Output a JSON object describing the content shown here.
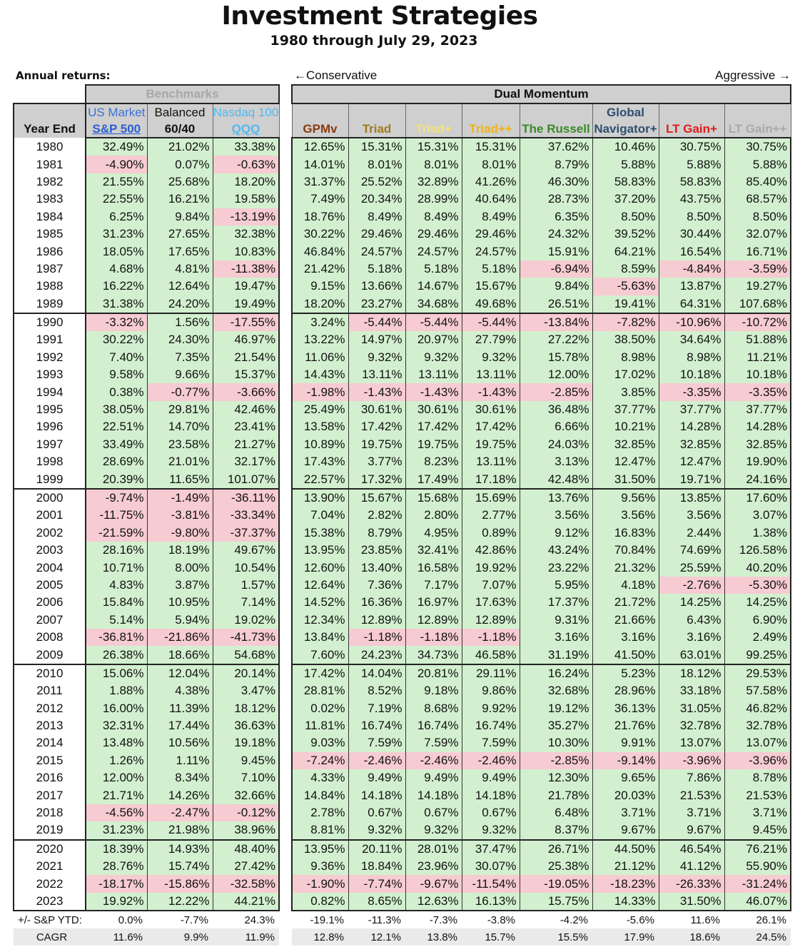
{
  "title": "Investment Strategies",
  "subtitle": "1980 through July 29, 2023",
  "annual_label": "Annual returns:",
  "conservative_label": "←Conservative",
  "aggressive_label": "Aggressive →",
  "groups": {
    "benchmarks": "Benchmarks",
    "dual_momentum": "Dual Momentum"
  },
  "year_header": "Year End",
  "columns": [
    {
      "top": "US Market",
      "bottom": "S&P 500",
      "top_color": "#3a6fd6",
      "bottom_color": "#2a5fcf"
    },
    {
      "top": "Balanced",
      "bottom": "60/40",
      "top_color": "#111111",
      "bottom_color": "#111111"
    },
    {
      "top": "Nasdaq 100",
      "bottom": "QQQ",
      "top_color": "#52b8ef",
      "bottom_color": "#52b8ef"
    },
    {
      "top": "",
      "bottom": "GPMv",
      "top_color": "#111111",
      "bottom_color": "#8a3a10"
    },
    {
      "top": "",
      "bottom": "Triad",
      "top_color": "#111111",
      "bottom_color": "#a07a1e"
    },
    {
      "top": "",
      "bottom": "Triad+",
      "top_color": "#111111",
      "bottom_color": "#f3e27a"
    },
    {
      "top": "",
      "bottom": "Triad++",
      "top_color": "#111111",
      "bottom_color": "#f2b218"
    },
    {
      "top": "",
      "bottom": "The Russell",
      "top_color": "#111111",
      "bottom_color": "#3a8a2a"
    },
    {
      "top": "Global",
      "bottom": "Navigator+",
      "top_color": "#2f4f6f",
      "bottom_color": "#2f4f6f"
    },
    {
      "top": "",
      "bottom": "LT Gain+",
      "top_color": "#111111",
      "bottom_color": "#e01c1c"
    },
    {
      "top": "",
      "bottom": "LT Gain++",
      "top_color": "#111111",
      "bottom_color": "#a9a9a9"
    }
  ],
  "rows": [
    {
      "year": "1980",
      "values": [
        "32.49%",
        "21.02%",
        "33.38%",
        "12.65%",
        "15.31%",
        "15.31%",
        "15.31%",
        "37.62%",
        "10.46%",
        "30.75%",
        "30.75%"
      ]
    },
    {
      "year": "1981",
      "values": [
        "-4.90%",
        "0.07%",
        "-0.63%",
        "14.01%",
        "8.01%",
        "8.01%",
        "8.01%",
        "8.79%",
        "5.88%",
        "5.88%",
        "5.88%"
      ]
    },
    {
      "year": "1982",
      "values": [
        "21.55%",
        "25.68%",
        "18.20%",
        "31.37%",
        "25.52%",
        "32.89%",
        "41.26%",
        "46.30%",
        "58.83%",
        "58.83%",
        "85.40%"
      ]
    },
    {
      "year": "1983",
      "values": [
        "22.55%",
        "16.21%",
        "19.58%",
        "7.49%",
        "20.34%",
        "28.99%",
        "40.64%",
        "28.73%",
        "37.20%",
        "43.75%",
        "68.57%"
      ]
    },
    {
      "year": "1984",
      "values": [
        "6.25%",
        "9.84%",
        "-13.19%",
        "18.76%",
        "8.49%",
        "8.49%",
        "8.49%",
        "6.35%",
        "8.50%",
        "8.50%",
        "8.50%"
      ]
    },
    {
      "year": "1985",
      "values": [
        "31.23%",
        "27.65%",
        "32.38%",
        "30.22%",
        "29.46%",
        "29.46%",
        "29.46%",
        "24.32%",
        "39.52%",
        "30.44%",
        "32.07%"
      ]
    },
    {
      "year": "1986",
      "values": [
        "18.05%",
        "17.65%",
        "10.83%",
        "46.84%",
        "24.57%",
        "24.57%",
        "24.57%",
        "15.91%",
        "64.21%",
        "16.54%",
        "16.71%"
      ]
    },
    {
      "year": "1987",
      "values": [
        "4.68%",
        "4.81%",
        "-11.38%",
        "21.42%",
        "5.18%",
        "5.18%",
        "5.18%",
        "-6.94%",
        "8.59%",
        "-4.84%",
        "-3.59%"
      ]
    },
    {
      "year": "1988",
      "values": [
        "16.22%",
        "12.64%",
        "19.47%",
        "9.15%",
        "13.66%",
        "14.67%",
        "15.67%",
        "9.84%",
        "-5.63%",
        "13.87%",
        "19.27%"
      ]
    },
    {
      "year": "1989",
      "values": [
        "31.38%",
        "24.20%",
        "19.49%",
        "18.20%",
        "23.27%",
        "34.68%",
        "49.68%",
        "26.51%",
        "19.41%",
        "64.31%",
        "107.68%"
      ]
    },
    {
      "year": "1990",
      "values": [
        "-3.32%",
        "1.56%",
        "-17.55%",
        "3.24%",
        "-5.44%",
        "-5.44%",
        "-5.44%",
        "-13.84%",
        "-7.82%",
        "-10.96%",
        "-10.72%"
      ]
    },
    {
      "year": "1991",
      "values": [
        "30.22%",
        "24.30%",
        "46.97%",
        "13.22%",
        "14.97%",
        "20.97%",
        "27.79%",
        "27.22%",
        "38.50%",
        "34.64%",
        "51.88%"
      ]
    },
    {
      "year": "1992",
      "values": [
        "7.40%",
        "7.35%",
        "21.54%",
        "11.06%",
        "9.32%",
        "9.32%",
        "9.32%",
        "15.78%",
        "8.98%",
        "8.98%",
        "11.21%"
      ]
    },
    {
      "year": "1993",
      "values": [
        "9.58%",
        "9.66%",
        "15.37%",
        "14.43%",
        "13.11%",
        "13.11%",
        "13.11%",
        "12.00%",
        "17.02%",
        "10.18%",
        "10.18%"
      ]
    },
    {
      "year": "1994",
      "values": [
        "0.38%",
        "-0.77%",
        "-3.66%",
        "-1.98%",
        "-1.43%",
        "-1.43%",
        "-1.43%",
        "-2.85%",
        "3.85%",
        "-3.35%",
        "-3.35%"
      ]
    },
    {
      "year": "1995",
      "values": [
        "38.05%",
        "29.81%",
        "42.46%",
        "25.49%",
        "30.61%",
        "30.61%",
        "30.61%",
        "36.48%",
        "37.77%",
        "37.77%",
        "37.77%"
      ]
    },
    {
      "year": "1996",
      "values": [
        "22.51%",
        "14.70%",
        "23.41%",
        "13.58%",
        "17.42%",
        "17.42%",
        "17.42%",
        "6.66%",
        "10.21%",
        "14.28%",
        "14.28%"
      ]
    },
    {
      "year": "1997",
      "values": [
        "33.49%",
        "23.58%",
        "21.27%",
        "10.89%",
        "19.75%",
        "19.75%",
        "19.75%",
        "24.03%",
        "32.85%",
        "32.85%",
        "32.85%"
      ]
    },
    {
      "year": "1998",
      "values": [
        "28.69%",
        "21.01%",
        "32.17%",
        "17.43%",
        "3.77%",
        "8.23%",
        "13.11%",
        "3.13%",
        "12.47%",
        "12.47%",
        "19.90%"
      ]
    },
    {
      "year": "1999",
      "values": [
        "20.39%",
        "11.65%",
        "101.07%",
        "22.57%",
        "17.32%",
        "17.49%",
        "17.18%",
        "42.48%",
        "31.50%",
        "19.71%",
        "24.16%"
      ]
    },
    {
      "year": "2000",
      "values": [
        "-9.74%",
        "-1.49%",
        "-36.11%",
        "13.90%",
        "15.67%",
        "15.68%",
        "15.69%",
        "13.76%",
        "9.56%",
        "13.85%",
        "17.60%"
      ]
    },
    {
      "year": "2001",
      "values": [
        "-11.75%",
        "-3.81%",
        "-33.34%",
        "7.04%",
        "2.82%",
        "2.80%",
        "2.77%",
        "3.56%",
        "3.56%",
        "3.56%",
        "3.07%"
      ]
    },
    {
      "year": "2002",
      "values": [
        "-21.59%",
        "-9.80%",
        "-37.37%",
        "15.38%",
        "8.79%",
        "4.95%",
        "0.89%",
        "9.12%",
        "16.83%",
        "2.44%",
        "1.38%"
      ]
    },
    {
      "year": "2003",
      "values": [
        "28.16%",
        "18.19%",
        "49.67%",
        "13.95%",
        "23.85%",
        "32.41%",
        "42.86%",
        "43.24%",
        "70.84%",
        "74.69%",
        "126.58%"
      ]
    },
    {
      "year": "2004",
      "values": [
        "10.71%",
        "8.00%",
        "10.54%",
        "12.60%",
        "13.40%",
        "16.58%",
        "19.92%",
        "23.22%",
        "21.32%",
        "25.59%",
        "40.20%"
      ]
    },
    {
      "year": "2005",
      "values": [
        "4.83%",
        "3.87%",
        "1.57%",
        "12.64%",
        "7.36%",
        "7.17%",
        "7.07%",
        "5.95%",
        "4.18%",
        "-2.76%",
        "-5.30%"
      ]
    },
    {
      "year": "2006",
      "values": [
        "15.84%",
        "10.95%",
        "7.14%",
        "14.52%",
        "16.36%",
        "16.97%",
        "17.63%",
        "17.37%",
        "21.72%",
        "14.25%",
        "14.25%"
      ]
    },
    {
      "year": "2007",
      "values": [
        "5.14%",
        "5.94%",
        "19.02%",
        "12.34%",
        "12.89%",
        "12.89%",
        "12.89%",
        "9.31%",
        "21.66%",
        "6.43%",
        "6.90%"
      ]
    },
    {
      "year": "2008",
      "values": [
        "-36.81%",
        "-21.86%",
        "-41.73%",
        "13.84%",
        "-1.18%",
        "-1.18%",
        "-1.18%",
        "3.16%",
        "3.16%",
        "3.16%",
        "2.49%"
      ]
    },
    {
      "year": "2009",
      "values": [
        "26.38%",
        "18.66%",
        "54.68%",
        "7.60%",
        "24.23%",
        "34.73%",
        "46.58%",
        "31.19%",
        "41.50%",
        "63.01%",
        "99.25%"
      ]
    },
    {
      "year": "2010",
      "values": [
        "15.06%",
        "12.04%",
        "20.14%",
        "17.42%",
        "14.04%",
        "20.81%",
        "29.11%",
        "16.24%",
        "5.23%",
        "18.12%",
        "29.53%"
      ]
    },
    {
      "year": "2011",
      "values": [
        "1.88%",
        "4.38%",
        "3.47%",
        "28.81%",
        "8.52%",
        "9.18%",
        "9.86%",
        "32.68%",
        "28.96%",
        "33.18%",
        "57.58%"
      ]
    },
    {
      "year": "2012",
      "values": [
        "16.00%",
        "11.39%",
        "18.12%",
        "0.02%",
        "7.19%",
        "8.68%",
        "9.92%",
        "19.12%",
        "36.13%",
        "31.05%",
        "46.82%"
      ]
    },
    {
      "year": "2013",
      "values": [
        "32.31%",
        "17.44%",
        "36.63%",
        "11.81%",
        "16.74%",
        "16.74%",
        "16.74%",
        "35.27%",
        "21.76%",
        "32.78%",
        "32.78%"
      ]
    },
    {
      "year": "2014",
      "values": [
        "13.48%",
        "10.56%",
        "19.18%",
        "9.03%",
        "7.59%",
        "7.59%",
        "7.59%",
        "10.30%",
        "9.91%",
        "13.07%",
        "13.07%"
      ]
    },
    {
      "year": "2015",
      "values": [
        "1.26%",
        "1.11%",
        "9.45%",
        "-7.24%",
        "-2.46%",
        "-2.46%",
        "-2.46%",
        "-2.85%",
        "-9.14%",
        "-3.96%",
        "-3.96%"
      ]
    },
    {
      "year": "2016",
      "values": [
        "12.00%",
        "8.34%",
        "7.10%",
        "4.33%",
        "9.49%",
        "9.49%",
        "9.49%",
        "12.30%",
        "9.65%",
        "7.86%",
        "8.78%"
      ]
    },
    {
      "year": "2017",
      "values": [
        "21.71%",
        "14.26%",
        "32.66%",
        "14.84%",
        "14.18%",
        "14.18%",
        "14.18%",
        "21.78%",
        "20.03%",
        "21.53%",
        "21.53%"
      ]
    },
    {
      "year": "2018",
      "values": [
        "-4.56%",
        "-2.47%",
        "-0.12%",
        "2.78%",
        "0.67%",
        "0.67%",
        "0.67%",
        "6.48%",
        "3.71%",
        "3.71%",
        "3.71%"
      ]
    },
    {
      "year": "2019",
      "values": [
        "31.23%",
        "21.98%",
        "38.96%",
        "8.81%",
        "9.32%",
        "9.32%",
        "9.32%",
        "8.37%",
        "9.67%",
        "9.67%",
        "9.45%"
      ]
    },
    {
      "year": "2020",
      "values": [
        "18.39%",
        "14.93%",
        "48.40%",
        "13.95%",
        "20.11%",
        "28.01%",
        "37.47%",
        "26.71%",
        "44.50%",
        "46.54%",
        "76.21%"
      ]
    },
    {
      "year": "2021",
      "values": [
        "28.76%",
        "15.74%",
        "27.42%",
        "9.36%",
        "18.84%",
        "23.96%",
        "30.07%",
        "25.38%",
        "21.12%",
        "41.12%",
        "55.90%"
      ]
    },
    {
      "year": "2022",
      "values": [
        "-18.17%",
        "-15.86%",
        "-32.58%",
        "-1.90%",
        "-7.74%",
        "-9.67%",
        "-11.54%",
        "-19.05%",
        "-18.23%",
        "-26.33%",
        "-31.24%"
      ]
    },
    {
      "year": "2023",
      "values": [
        "19.92%",
        "12.22%",
        "44.21%",
        "0.82%",
        "8.65%",
        "12.63%",
        "16.13%",
        "15.75%",
        "14.33%",
        "31.50%",
        "46.07%"
      ]
    }
  ],
  "footer": [
    {
      "label": "+/- S&P YTD:",
      "values": [
        "0.0%",
        "-7.7%",
        "24.3%",
        "-19.1%",
        "-11.3%",
        "-7.3%",
        "-3.8%",
        "-4.2%",
        "-5.6%",
        "11.6%",
        "26.1%"
      ]
    },
    {
      "label": "CAGR",
      "values": [
        "11.6%",
        "9.9%",
        "11.9%",
        "12.8%",
        "12.1%",
        "13.8%",
        "15.7%",
        "15.5%",
        "17.9%",
        "18.6%",
        "24.5%"
      ]
    }
  ],
  "colors": {
    "positive_bg": "#d2f0cf",
    "negative_bg": "#f6cbd1",
    "header_bg": "#cfcfcf"
  }
}
